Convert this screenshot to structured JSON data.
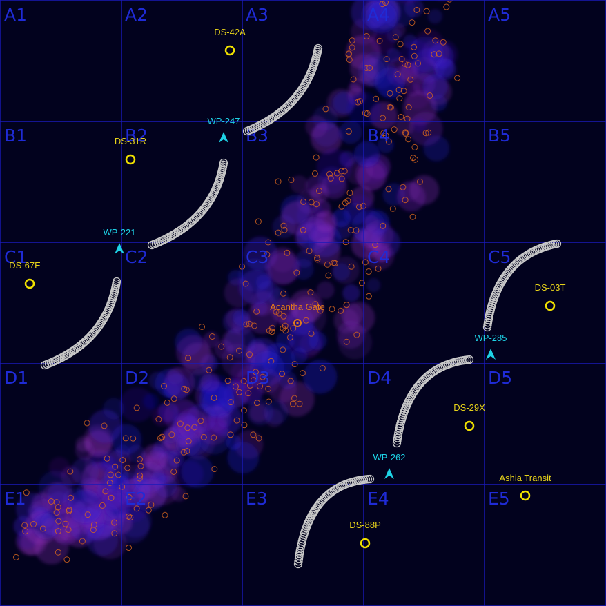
{
  "map": {
    "background": "#02021e",
    "grid_color": "#1a1ab8",
    "grid_label_color": "#1f2bd6",
    "rows": [
      "A",
      "B",
      "C",
      "D",
      "E"
    ],
    "columns": [
      "1",
      "2",
      "3",
      "4",
      "5"
    ],
    "cell_labels": [
      "A1",
      "A2",
      "A3",
      "A4",
      "A5",
      "B1",
      "B2",
      "B3",
      "B4",
      "B5",
      "C1",
      "C2",
      "C3",
      "C4",
      "C5",
      "D1",
      "D2",
      "D3",
      "D4",
      "D5",
      "E1",
      "E2",
      "E3",
      "E4",
      "E5"
    ]
  },
  "nebula": {
    "colors": [
      "#1a1ad6",
      "#6a1aa8",
      "#8c2ab8",
      "#3a1ac8"
    ],
    "particle_color": "#d2641e"
  },
  "drop_sites": {
    "color": "#f0e000",
    "items": [
      {
        "id": "DS-42A"
      },
      {
        "id": "DS-31R"
      },
      {
        "id": "DS-67E"
      },
      {
        "id": "DS-03T"
      },
      {
        "id": "DS-29X"
      },
      {
        "id": "DS-88P"
      }
    ]
  },
  "waypoints": {
    "color": "#1ed2e6",
    "items": [
      {
        "id": "WP-247"
      },
      {
        "id": "WP-221"
      },
      {
        "id": "WP-285"
      },
      {
        "id": "WP-262"
      }
    ]
  },
  "points_of_interest": [
    {
      "name": "Acantha Gate",
      "color": "#e07a1c"
    },
    {
      "name": "Ashia Transit",
      "color": "#f0e000"
    }
  ],
  "wall_color": "#c8c8c8"
}
